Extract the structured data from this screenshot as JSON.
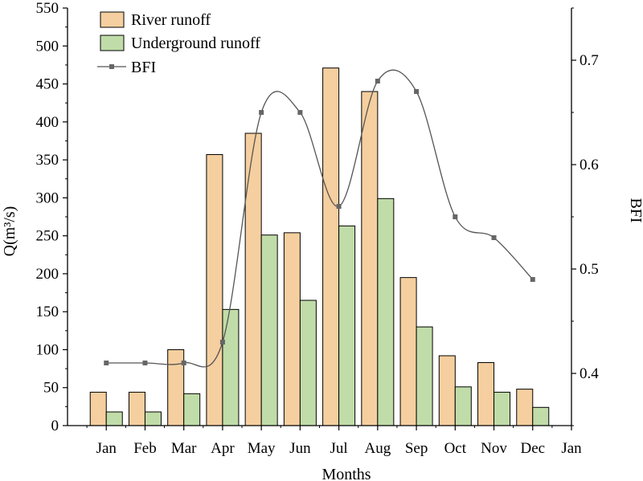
{
  "chart_data": {
    "type": "bar",
    "categories": [
      "Jan",
      "Feb",
      "Mar",
      "Apr",
      "May",
      "Jun",
      "Jul",
      "Aug",
      "Sep",
      "Oct",
      "Nov",
      "Dec"
    ],
    "extra_x_tick": "Jan",
    "xlabel": "Months",
    "ylabel": "Q(m³/s)",
    "y2label": "BFI",
    "ylim": [
      0,
      550
    ],
    "yticks": [
      0,
      50,
      100,
      150,
      200,
      250,
      300,
      350,
      400,
      450,
      500,
      550
    ],
    "y2lim": [
      0.35,
      0.75
    ],
    "y2ticks": [
      0.4,
      0.5,
      0.6,
      0.7
    ],
    "legend_position": "top-left",
    "grid": false,
    "series": [
      {
        "name": "River runoff",
        "type": "bar",
        "color": "#f5cf9f",
        "values": [
          44,
          44,
          100,
          357,
          385,
          254,
          471,
          440,
          195,
          92,
          83,
          48
        ]
      },
      {
        "name": "Underground runoff",
        "type": "bar",
        "color": "#c0dca8",
        "values": [
          18,
          18,
          42,
          153,
          251,
          165,
          263,
          299,
          130,
          51,
          44,
          24
        ]
      },
      {
        "name": "BFI",
        "type": "line",
        "axis": "right",
        "color": "#555555",
        "marker": "square",
        "values": [
          0.41,
          0.41,
          0.41,
          0.43,
          0.65,
          0.65,
          0.56,
          0.68,
          0.67,
          0.55,
          0.53,
          0.49
        ]
      }
    ]
  }
}
